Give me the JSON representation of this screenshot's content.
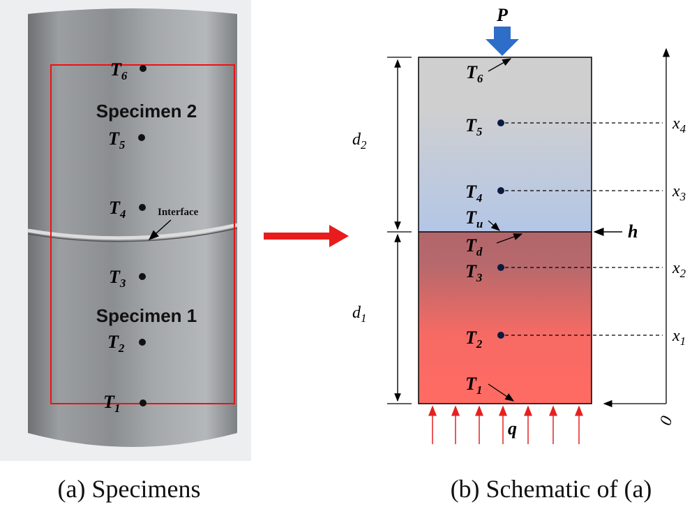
{
  "photo": {
    "sensors": [
      {
        "main": "T",
        "sub": "6"
      },
      {
        "main": "T",
        "sub": "5"
      },
      {
        "main": "T",
        "sub": "4"
      },
      {
        "main": "T",
        "sub": "3"
      },
      {
        "main": "T",
        "sub": "2"
      },
      {
        "main": "T",
        "sub": "1"
      }
    ],
    "specimens": [
      "Specimen 2",
      "Specimen 1"
    ],
    "interface": "Interface"
  },
  "schematic": {
    "load": "P",
    "flux": "q",
    "coefficient": "h",
    "sensors": [
      {
        "main": "T",
        "sub": "6"
      },
      {
        "main": "T",
        "sub": "5"
      },
      {
        "main": "T",
        "sub": "4"
      },
      {
        "main": "T",
        "sub": "u"
      },
      {
        "main": "T",
        "sub": "d"
      },
      {
        "main": "T",
        "sub": "3"
      },
      {
        "main": "T",
        "sub": "2"
      },
      {
        "main": "T",
        "sub": "1"
      }
    ],
    "thickness": [
      {
        "main": "d",
        "sub": "2"
      },
      {
        "main": "d",
        "sub": "1"
      }
    ],
    "positions": [
      {
        "main": "x",
        "sub": "4"
      },
      {
        "main": "x",
        "sub": "3"
      },
      {
        "main": "x",
        "sub": "2"
      },
      {
        "main": "x",
        "sub": "1"
      }
    ],
    "origin": "0"
  },
  "captions": [
    "(a) Specimens",
    "(b) Schematic of (a)"
  ]
}
